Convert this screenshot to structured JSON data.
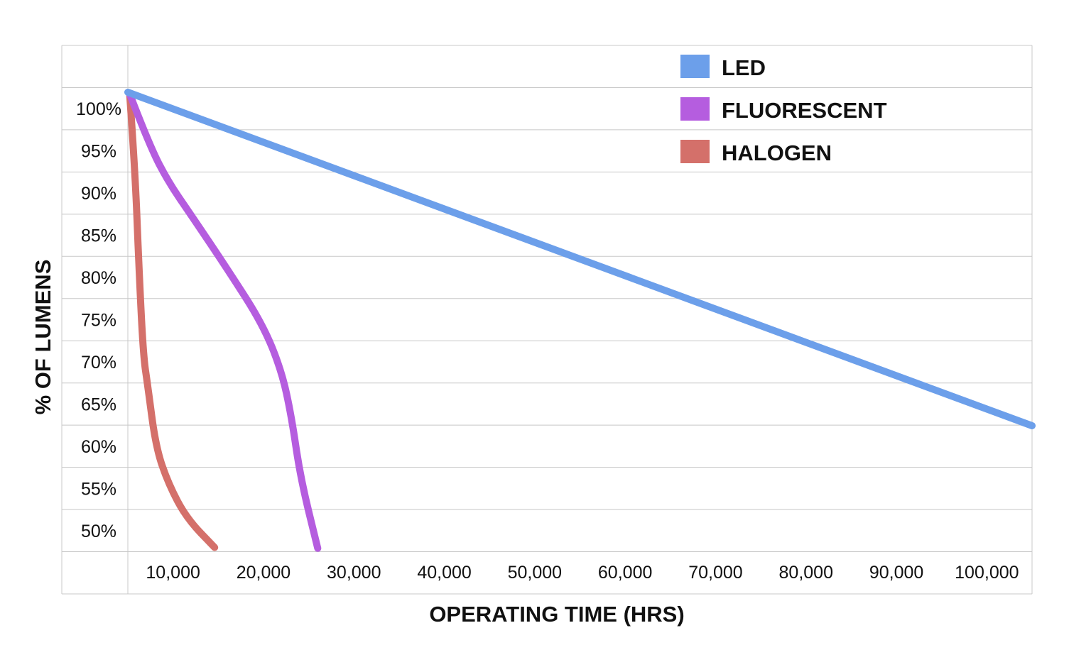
{
  "chart_data": {
    "type": "line",
    "title": "",
    "xlabel": "OPERATING TIME (HRS)",
    "ylabel": "% OF LUMENS",
    "x_ticks": [
      "10,000",
      "20,000",
      "30,000",
      "40,000",
      "50,000",
      "60,000",
      "70,000",
      "80,000",
      "90,000",
      "100,000"
    ],
    "x_tick_values": [
      10000,
      20000,
      30000,
      40000,
      50000,
      60000,
      70000,
      80000,
      90000,
      100000
    ],
    "y_ticks": [
      "100%",
      "95%",
      "90%",
      "85%",
      "80%",
      "75%",
      "70%",
      "65%",
      "60%",
      "55%",
      "50%"
    ],
    "y_tick_values": [
      100,
      95,
      90,
      85,
      80,
      75,
      70,
      65,
      60,
      55,
      50
    ],
    "xlim": [
      5000,
      105000
    ],
    "ylim": [
      45,
      100
    ],
    "grid": "horizontal",
    "legend_position": "top-right",
    "series": [
      {
        "name": "LED",
        "color": "#6c9fea",
        "points": [
          [
            5000,
            100
          ],
          [
            105000,
            60
          ]
        ]
      },
      {
        "name": "FLUORESCENT",
        "color": "#b55ddf",
        "points": [
          [
            5200,
            99.8
          ],
          [
            7400,
            93.6
          ],
          [
            9500,
            89.2
          ],
          [
            12100,
            85.1
          ],
          [
            16000,
            78.8
          ],
          [
            19900,
            72.2
          ],
          [
            22000,
            66.6
          ],
          [
            23100,
            61.1
          ],
          [
            24100,
            53.7
          ],
          [
            26000,
            45.3
          ]
        ]
      },
      {
        "name": "HALOGEN",
        "color": "#d4706a",
        "points": [
          [
            5200,
            99.8
          ],
          [
            5800,
            90.6
          ],
          [
            6200,
            79.6
          ],
          [
            6700,
            68.5
          ],
          [
            7200,
            64.8
          ],
          [
            8100,
            57.4
          ],
          [
            9500,
            53.0
          ],
          [
            11500,
            48.9
          ],
          [
            14600,
            45.4
          ]
        ]
      }
    ]
  }
}
